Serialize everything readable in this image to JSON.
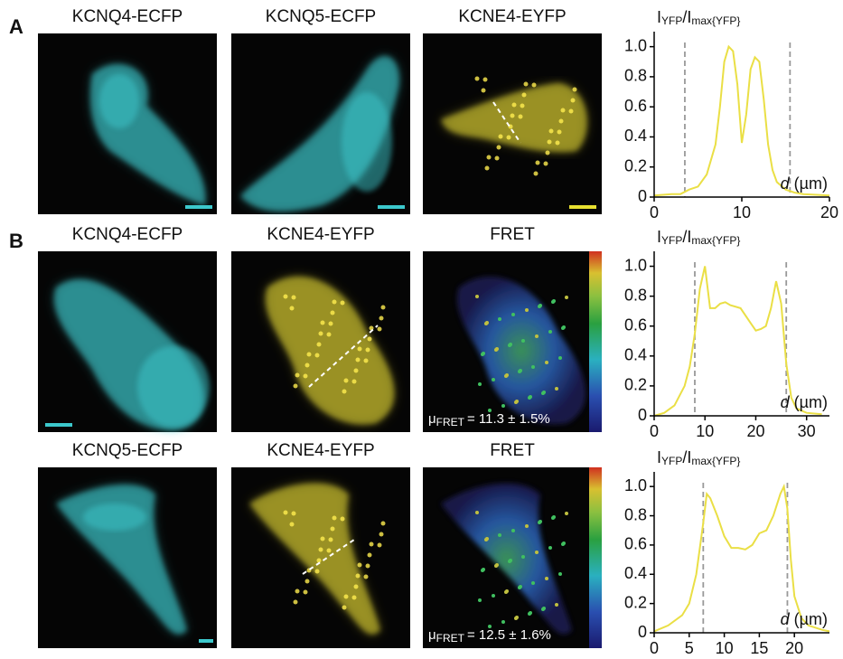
{
  "panels": [
    "A",
    "B"
  ],
  "images": [
    {
      "title": "KCNQ4-ECFP"
    },
    {
      "title": "KCNQ5-ECFP"
    },
    {
      "title": "KCNE4-EYFP"
    },
    {
      "title": "KCNQ4-ECFP"
    },
    {
      "title": "KCNE4-EYFP"
    },
    {
      "title": "FRET",
      "annotation": [
        "μ",
        "FRET",
        "= 11.3 ± 1.5%"
      ]
    },
    {
      "title": "KCNQ5-ECFP"
    },
    {
      "title": "KCNE4-EYFP"
    },
    {
      "title": "FRET",
      "annotation": [
        "μ",
        "FRET",
        "= 12.5 ± 1.6%"
      ]
    }
  ],
  "chart_data": [
    {
      "type": "line",
      "y_label": [
        "I",
        "YFP",
        "/I",
        "max{YFP}"
      ],
      "x_label": [
        "d",
        "(µm)"
      ],
      "color": "#eadf45",
      "vline_color": "#999999",
      "x": [
        0,
        2,
        3,
        4,
        5,
        6,
        7,
        7.5,
        8,
        8.5,
        9,
        9.5,
        10,
        10.5,
        11,
        11.5,
        12,
        12.5,
        13,
        13.5,
        14,
        15,
        16,
        17,
        20
      ],
      "values": [
        0.01,
        0.02,
        0.02,
        0.05,
        0.07,
        0.15,
        0.35,
        0.6,
        0.9,
        1.0,
        0.97,
        0.75,
        0.36,
        0.55,
        0.85,
        0.93,
        0.9,
        0.65,
        0.35,
        0.18,
        0.1,
        0.05,
        0.03,
        0.02,
        0.01
      ],
      "vlines": [
        3.5,
        15.5
      ],
      "xlim": [
        0,
        20
      ],
      "xticks": [
        0,
        10,
        20
      ],
      "ylim": [
        0,
        1.1
      ],
      "yticks": [
        0,
        0.2,
        0.4,
        0.6,
        0.8,
        {
          "value": 1,
          "label": "1.0"
        }
      ]
    },
    {
      "type": "line",
      "y_label": [
        "I",
        "YFP",
        "/I",
        "max{YFP}"
      ],
      "x_label": [
        "d",
        "(µm)"
      ],
      "color": "#eadf45",
      "vline_color": "#999999",
      "x": [
        0,
        2,
        4,
        6,
        7,
        8,
        9,
        10,
        11,
        12,
        13,
        14,
        15,
        17,
        19,
        20,
        21,
        22,
        23,
        24,
        25,
        26,
        27,
        28,
        30,
        33
      ],
      "values": [
        0,
        0.02,
        0.07,
        0.2,
        0.33,
        0.55,
        0.85,
        1.0,
        0.72,
        0.72,
        0.75,
        0.76,
        0.74,
        0.72,
        0.62,
        0.57,
        0.58,
        0.6,
        0.72,
        0.9,
        0.75,
        0.35,
        0.12,
        0.05,
        0.02,
        0.01
      ],
      "vlines": [
        8,
        26
      ],
      "xlim": [
        0,
        34.5
      ],
      "xticks": [
        0,
        10,
        20,
        30
      ],
      "ylim": [
        0,
        1.1
      ],
      "yticks": [
        0,
        0.2,
        0.4,
        0.6,
        0.8,
        {
          "value": 1,
          "label": "1.0"
        }
      ]
    },
    {
      "type": "line",
      "y_label": [
        "I",
        "YFP",
        "/I",
        "max{YFP}"
      ],
      "x_label": [
        "d",
        "(µm)"
      ],
      "color": "#eadf45",
      "vline_color": "#999999",
      "x": [
        0,
        2,
        4,
        5,
        6,
        7,
        7.5,
        8,
        9,
        10,
        11,
        12,
        13,
        14,
        15,
        16,
        17,
        18,
        18.5,
        19,
        19.5,
        20,
        21,
        22,
        24,
        25
      ],
      "values": [
        0.01,
        0.05,
        0.12,
        0.2,
        0.4,
        0.75,
        0.95,
        0.92,
        0.8,
        0.66,
        0.58,
        0.58,
        0.57,
        0.6,
        0.68,
        0.7,
        0.8,
        0.95,
        1.0,
        0.85,
        0.5,
        0.25,
        0.1,
        0.05,
        0.02,
        0.01
      ],
      "vlines": [
        7,
        19
      ],
      "xlim": [
        0,
        25
      ],
      "xticks": [
        0,
        5,
        10,
        15,
        20
      ],
      "ylim": [
        0,
        1.1
      ],
      "yticks": [
        0,
        0.2,
        0.4,
        0.6,
        0.8,
        {
          "value": 1,
          "label": "1.0"
        }
      ]
    }
  ]
}
